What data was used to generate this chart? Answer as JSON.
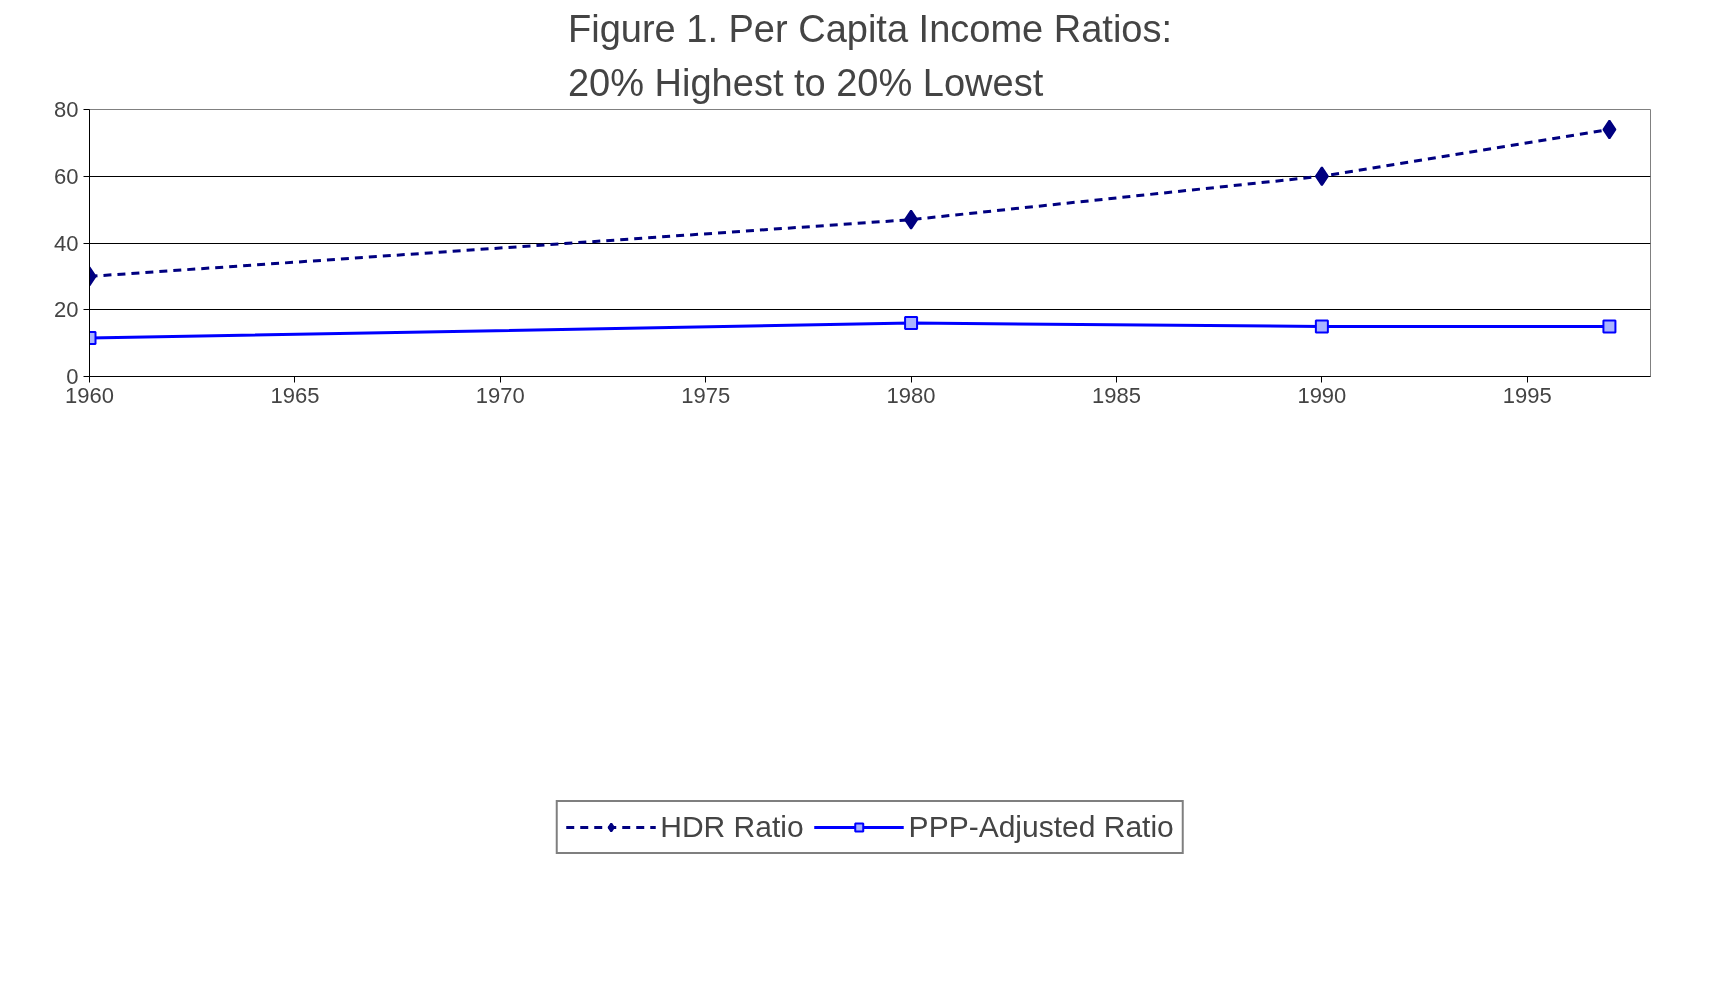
{
  "chart_data": {
    "type": "line",
    "title": "Figure 1. Per Capita Income Ratios:\n20% Highest to 20% Lowest",
    "x": [
      1960,
      1980,
      1990,
      1997
    ],
    "series": [
      {
        "name": "HDR Ratio",
        "color": "#000080",
        "values": [
          30,
          47,
          60,
          74
        ],
        "marker": "diamond",
        "line_style": "dashed"
      },
      {
        "name": "PPP-Adjusted Ratio",
        "color": "#0000ff",
        "values": [
          11.5,
          16,
          15,
          15
        ],
        "marker": "square",
        "line_style": "solid"
      }
    ],
    "xlim": [
      1960,
      1998
    ],
    "xticks": [
      1960,
      1965,
      1970,
      1975,
      1980,
      1985,
      1990,
      1995
    ],
    "ylim": [
      0,
      80
    ],
    "yticks": [
      0,
      20,
      40,
      60,
      80
    ],
    "grid": "y",
    "legend": "bottom"
  }
}
